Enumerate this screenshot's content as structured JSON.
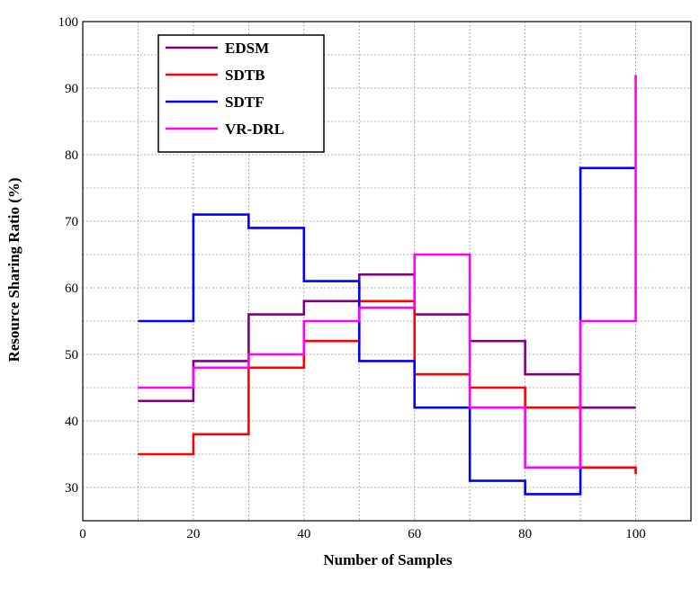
{
  "chart_data": {
    "type": "line",
    "step": "post",
    "xlabel": "Number of Samples",
    "ylabel": "Resource Sharing Ratio (%)",
    "xlim": [
      0,
      110
    ],
    "ylim": [
      25,
      100
    ],
    "xticks": [
      0,
      20,
      40,
      60,
      80,
      100
    ],
    "yticks": [
      30,
      40,
      50,
      60,
      70,
      80,
      90,
      100
    ],
    "grid": true,
    "legend_position": "top-left",
    "x": [
      10,
      20,
      30,
      40,
      50,
      60,
      70,
      80,
      90,
      100
    ],
    "series": [
      {
        "name": "EDSM",
        "color": "#800080",
        "values": [
          43,
          49,
          56,
          58,
          62,
          56,
          52,
          47,
          42,
          42
        ]
      },
      {
        "name": "SDTB",
        "color": "#ff0000",
        "values": [
          35,
          38,
          48,
          52,
          58,
          47,
          45,
          42,
          33,
          32
        ]
      },
      {
        "name": "SDTF",
        "color": "#0000ff",
        "values": [
          55,
          71,
          69,
          61,
          49,
          42,
          31,
          29,
          78,
          78
        ]
      },
      {
        "name": "VR-DRL",
        "color": "#ff00ff",
        "values": [
          45,
          48,
          50,
          55,
          57,
          65,
          42,
          33,
          55,
          92
        ]
      }
    ]
  }
}
